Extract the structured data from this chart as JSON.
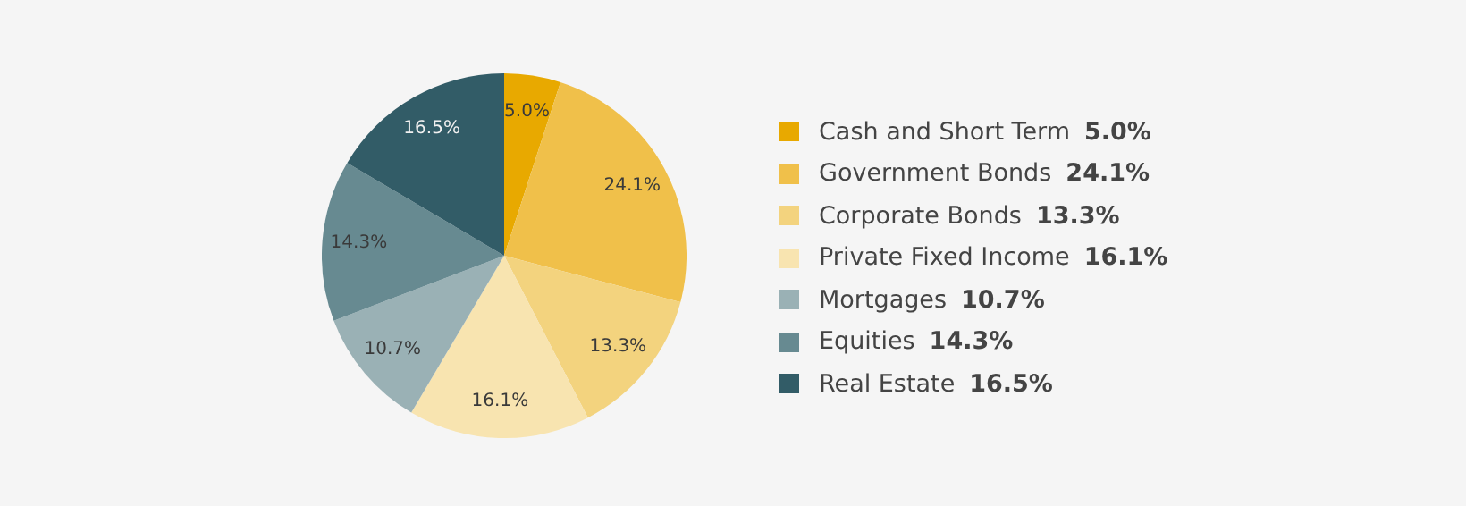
{
  "chart_data": {
    "type": "pie",
    "categories": [
      "Cash and Short Term",
      "Government Bonds",
      "Corporate Bonds",
      "Private Fixed Income",
      "Mortgages",
      "Equities",
      "Real Estate"
    ],
    "values": [
      5.0,
      24.1,
      13.3,
      16.1,
      10.7,
      14.3,
      16.5
    ],
    "value_labels": [
      "5.0%",
      "24.1%",
      "13.3%",
      "16.1%",
      "10.7%",
      "14.3%",
      "16.5%"
    ],
    "colors": [
      "#e8a900",
      "#f0c04a",
      "#f3d37e",
      "#f8e4b0",
      "#9ab1b5",
      "#678a91",
      "#325c67"
    ],
    "legend": "right"
  }
}
